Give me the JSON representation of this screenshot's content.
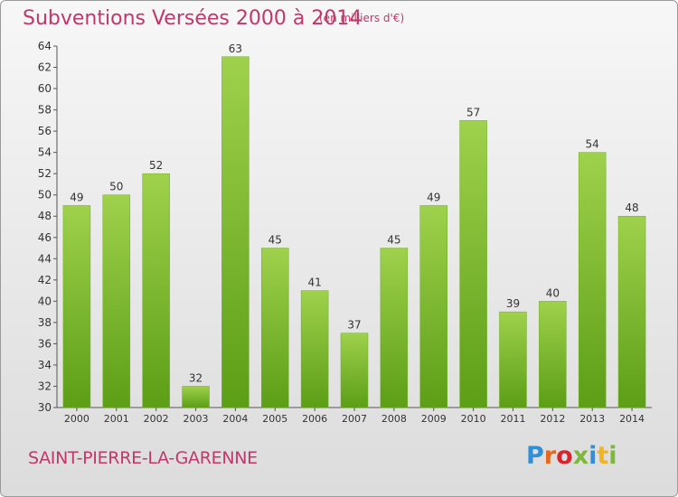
{
  "header": {
    "title": "Subventions Versées 2000 à 2014",
    "subtitle": "(en milliers d'€)"
  },
  "footer": {
    "commune": "SAINT-PIERRE-LA-GARENNE",
    "logo_letters": [
      "P",
      "r",
      "o",
      "x",
      "i",
      "t",
      "i"
    ],
    "logo_colors": [
      "#2f8fd8",
      "#e6681e",
      "#d9232d",
      "#7cb83a",
      "#2f8fd8",
      "#f2b51e",
      "#7cb83a"
    ]
  },
  "colors": {
    "bar_light": "#9fd14c",
    "bar_dark": "#5c9e16",
    "title": "#c0386b"
  },
  "chart_data": {
    "type": "bar",
    "categories": [
      "2000",
      "2001",
      "2002",
      "2003",
      "2004",
      "2005",
      "2006",
      "2007",
      "2008",
      "2009",
      "2010",
      "2011",
      "2012",
      "2013",
      "2014"
    ],
    "values": [
      49,
      50,
      52,
      32,
      63,
      45,
      41,
      37,
      45,
      49,
      57,
      39,
      40,
      54,
      48
    ],
    "title": "Subventions Versées 2000 à 2014",
    "ylim": [
      30,
      64
    ],
    "yticks": [
      30,
      32,
      34,
      36,
      38,
      40,
      42,
      44,
      46,
      48,
      50,
      52,
      54,
      56,
      58,
      60,
      62,
      64
    ],
    "grid": false,
    "data_labels": true
  }
}
